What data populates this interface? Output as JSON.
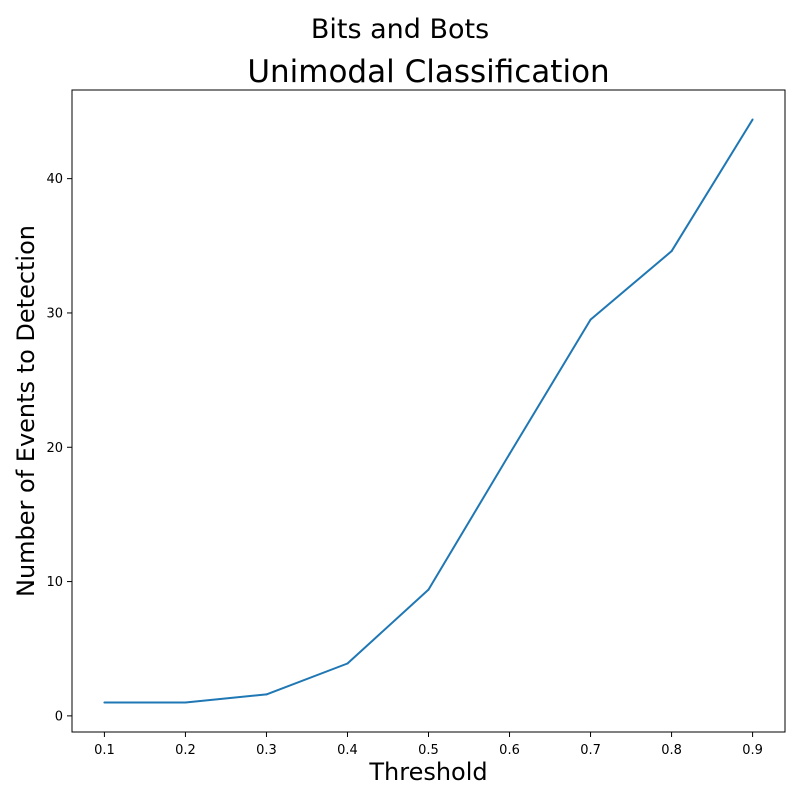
{
  "figure": {
    "suptitle": "Bits and Bots"
  },
  "chart_data": {
    "type": "line",
    "title": "Unimodal Classification",
    "xlabel": "Threshold",
    "ylabel": "Number of Events to Detection",
    "x": [
      0.1,
      0.2,
      0.3,
      0.4,
      0.5,
      0.6,
      0.7,
      0.8,
      0.9
    ],
    "series": [
      {
        "values": [
          1.0,
          1.0,
          1.6,
          3.9,
          9.4,
          19.5,
          29.5,
          34.6,
          44.4
        ],
        "color": "#1f77b4"
      }
    ],
    "xlim": [
      0.06,
      0.94
    ],
    "ylim": [
      -1.2,
      46.6
    ],
    "xticks": [
      0.1,
      0.2,
      0.3,
      0.4,
      0.5,
      0.6,
      0.7,
      0.8,
      0.9
    ],
    "xtick_labels": [
      "0.1",
      "0.2",
      "0.3",
      "0.4",
      "0.5",
      "0.6",
      "0.7",
      "0.8",
      "0.9"
    ],
    "yticks": [
      0,
      10,
      20,
      30,
      40
    ],
    "ytick_labels": [
      "0",
      "10",
      "20",
      "30",
      "40"
    ],
    "grid": false,
    "legend": "none"
  }
}
